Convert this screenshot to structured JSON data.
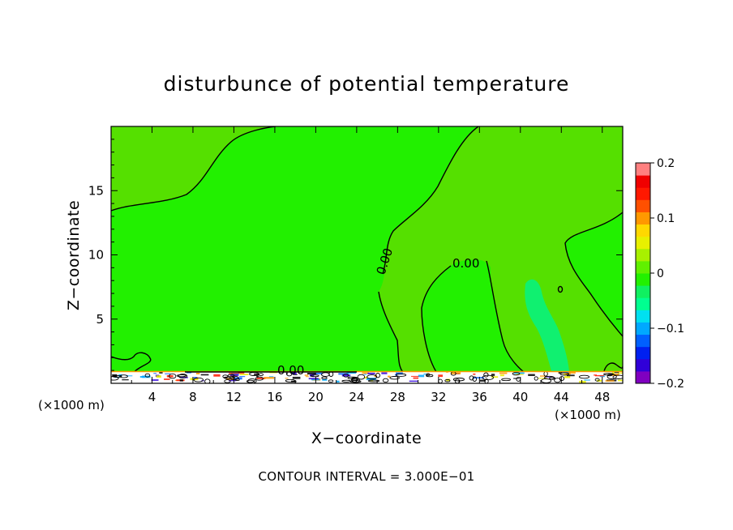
{
  "chart_data": {
    "type": "heatmap",
    "title": "disturbunce of potential temperature",
    "xlabel": "X−coordinate",
    "ylabel": "Z−coordinate",
    "x_unit": "(×1000 m)",
    "y_unit": "(×1000 m)",
    "xlim": [
      0,
      50
    ],
    "ylim": [
      0,
      20
    ],
    "x_ticks": [
      4,
      8,
      12,
      16,
      20,
      24,
      28,
      32,
      36,
      40,
      44,
      48
    ],
    "y_ticks": [
      5,
      10,
      15
    ],
    "colorbar": {
      "range": [
        -0.2,
        0.2
      ],
      "ticks": [
        "0.2",
        "0.1",
        "0",
        "−0.1",
        "−0.2"
      ],
      "tick_values": [
        0.2,
        0.1,
        0,
        -0.1,
        -0.2
      ],
      "colors": [
        "#8000c0",
        "#3000d8",
        "#0020f0",
        "#0060ff",
        "#00a8ff",
        "#00e0f0",
        "#00ff90",
        "#10f060",
        "#22f000",
        "#60f000",
        "#a8f000",
        "#e8f000",
        "#ffd800",
        "#ff9800",
        "#ff5000",
        "#ff1800",
        "#f00000",
        "#ff8080"
      ]
    },
    "field_colors": {
      "background": "#22f000",
      "warm_region": "#55e000",
      "cold_plume": "#10f070",
      "contour": "#000000"
    },
    "contour_labels": [
      "0.00",
      "0.00",
      "0.00"
    ],
    "footer": "CONTOUR INTERVAL = 3.000E−01"
  }
}
